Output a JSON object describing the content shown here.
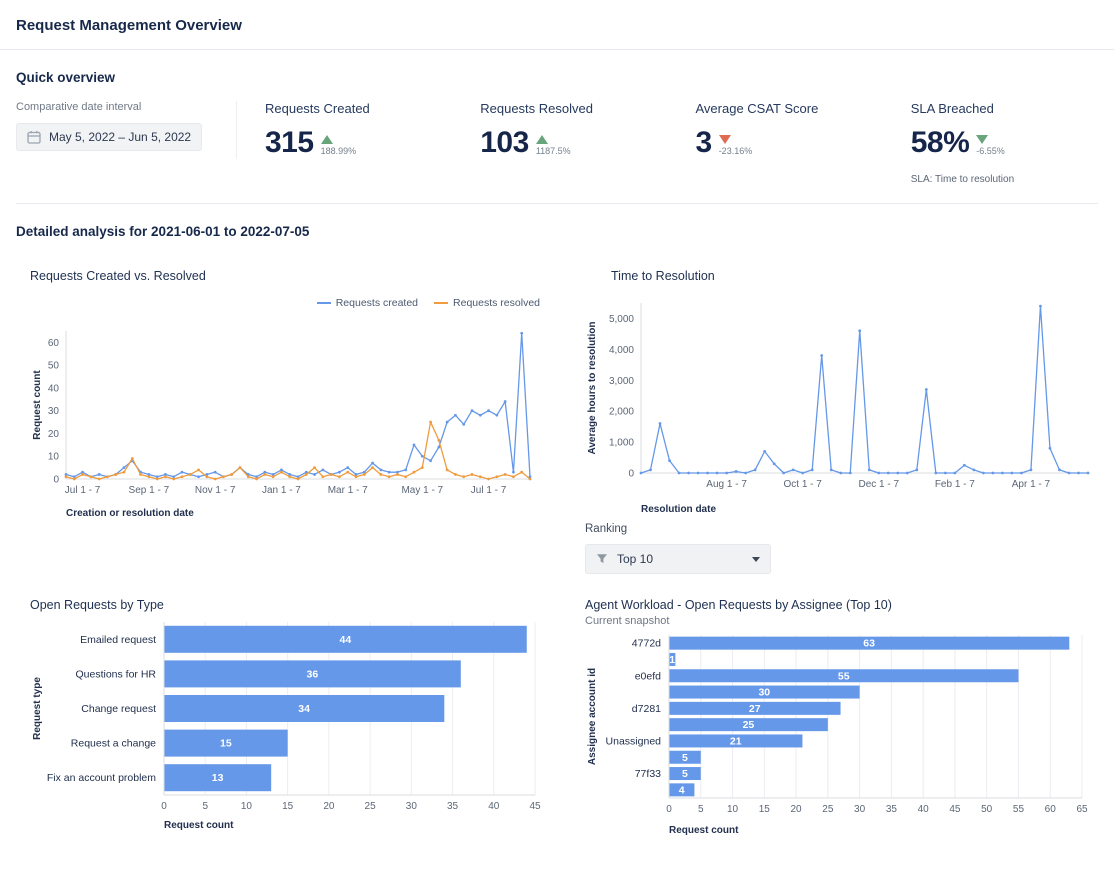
{
  "page": {
    "title": "Request Management Overview"
  },
  "quick_overview": {
    "heading": "Quick overview",
    "date_interval": {
      "label": "Comparative date interval",
      "value": "May 5, 2022  –  Jun 5, 2022"
    },
    "kpis": [
      {
        "label": "Requests Created",
        "value": "315",
        "delta": "188.99%",
        "direction": "up",
        "sentiment": "positive"
      },
      {
        "label": "Requests Resolved",
        "value": "103",
        "delta": "1187.5%",
        "direction": "up",
        "sentiment": "positive"
      },
      {
        "label": "Average CSAT Score",
        "value": "3",
        "delta": "-23.16%",
        "direction": "down",
        "sentiment": "negative"
      },
      {
        "label": "SLA Breached",
        "value": "58%",
        "delta": "-6.55%",
        "direction": "down",
        "sentiment": "positive",
        "footnote": "SLA: Time to resolution"
      }
    ]
  },
  "detailed": {
    "heading": "Detailed analysis for 2021-06-01 to 2022-07-05"
  },
  "ranking": {
    "label": "Ranking",
    "selected": "Top 10"
  },
  "colors": {
    "blue": "#6598E8",
    "orange": "#F09B3E",
    "green": "#68A57D",
    "red": "#DE6B52",
    "navy": "#15264A"
  },
  "chart_data": [
    {
      "id": "created_vs_resolved",
      "type": "line",
      "title": "Requests Created vs. Resolved",
      "xlabel": "Creation or resolution date",
      "ylabel": "Request count",
      "ylim": [
        0,
        65
      ],
      "yticks": [
        0,
        10,
        20,
        30,
        40,
        50,
        60
      ],
      "xtick_labels": [
        "Jul 1 - 7",
        "Sep 1 - 7",
        "Nov 1 - 7",
        "Jan 1 - 7",
        "Mar 1 - 7",
        "May 1 - 7",
        "Jul 1 - 7"
      ],
      "xtick_indices": [
        2,
        10,
        18,
        26,
        34,
        43,
        51
      ],
      "legend": [
        "Requests created",
        "Requests resolved"
      ],
      "series": [
        {
          "name": "Requests created",
          "color": "blue",
          "values": [
            2,
            1,
            3,
            1,
            2,
            1,
            2,
            5,
            8,
            3,
            2,
            1,
            2,
            1,
            3,
            2,
            1,
            2,
            3,
            1,
            2,
            5,
            2,
            1,
            3,
            2,
            4,
            2,
            1,
            3,
            2,
            4,
            2,
            3,
            5,
            2,
            3,
            7,
            4,
            3,
            3,
            4,
            15,
            10,
            8,
            14,
            25,
            28,
            24,
            30,
            28,
            30,
            28,
            34,
            3,
            64,
            1
          ]
        },
        {
          "name": "Requests resolved",
          "color": "orange",
          "values": [
            1,
            0,
            2,
            1,
            0,
            1,
            2,
            3,
            9,
            2,
            1,
            0,
            1,
            0,
            1,
            2,
            4,
            1,
            0,
            1,
            2,
            5,
            1,
            0,
            2,
            1,
            3,
            1,
            0,
            2,
            5,
            1,
            2,
            1,
            3,
            1,
            2,
            5,
            2,
            1,
            2,
            1,
            3,
            5,
            25,
            17,
            4,
            2,
            1,
            2,
            1,
            0,
            1,
            2,
            1,
            3,
            0
          ]
        }
      ]
    },
    {
      "id": "time_to_resolution",
      "type": "line",
      "title": "Time to Resolution",
      "xlabel": "Resolution date",
      "ylabel": "Average hours to resolution",
      "ylim": [
        0,
        5500
      ],
      "yticks": [
        0,
        1000,
        2000,
        3000,
        4000,
        5000
      ],
      "xtick_labels": [
        "Aug 1 - 7",
        "Oct 1 - 7",
        "Dec 1 - 7",
        "Feb 1 - 7",
        "Apr 1 - 7"
      ],
      "xtick_indices": [
        9,
        17,
        25,
        33,
        41
      ],
      "series": [
        {
          "name": "Average hours to resolution",
          "color": "blue",
          "values": [
            0,
            100,
            1600,
            400,
            0,
            0,
            0,
            0,
            0,
            0,
            50,
            0,
            100,
            700,
            300,
            0,
            100,
            0,
            100,
            3800,
            100,
            0,
            0,
            4600,
            100,
            0,
            0,
            0,
            0,
            100,
            2700,
            0,
            0,
            0,
            250,
            100,
            0,
            0,
            0,
            0,
            0,
            100,
            5400,
            800,
            100,
            0,
            0,
            0
          ]
        }
      ]
    },
    {
      "id": "open_by_type",
      "type": "bar",
      "orientation": "horizontal",
      "title": "Open Requests by Type",
      "xlabel": "Request count",
      "ylabel": "Request type",
      "xlim": [
        0,
        45
      ],
      "xticks": [
        0,
        5,
        10,
        15,
        20,
        25,
        30,
        35,
        40,
        45
      ],
      "categories": [
        "Emailed request",
        "Questions for HR",
        "Change request",
        "Request a change",
        "Fix an account problem"
      ],
      "values": [
        44,
        36,
        34,
        15,
        13
      ]
    },
    {
      "id": "agent_workload",
      "type": "bar",
      "orientation": "horizontal",
      "title": "Agent Workload - Open Requests by Assignee (Top 10)",
      "subtitle": "Current snapshot",
      "xlabel": "Request count",
      "ylabel": "Assignee account id",
      "xlim": [
        0,
        65
      ],
      "xticks": [
        0,
        5,
        10,
        15,
        20,
        25,
        30,
        35,
        40,
        45,
        50,
        55,
        60,
        65
      ],
      "categories": [
        "4772d",
        "",
        "e0efd",
        "",
        "d7281",
        "",
        "Unassigned",
        "",
        "77f33",
        ""
      ],
      "values": [
        63,
        1,
        55,
        30,
        27,
        25,
        21,
        5,
        5,
        4
      ]
    }
  ]
}
